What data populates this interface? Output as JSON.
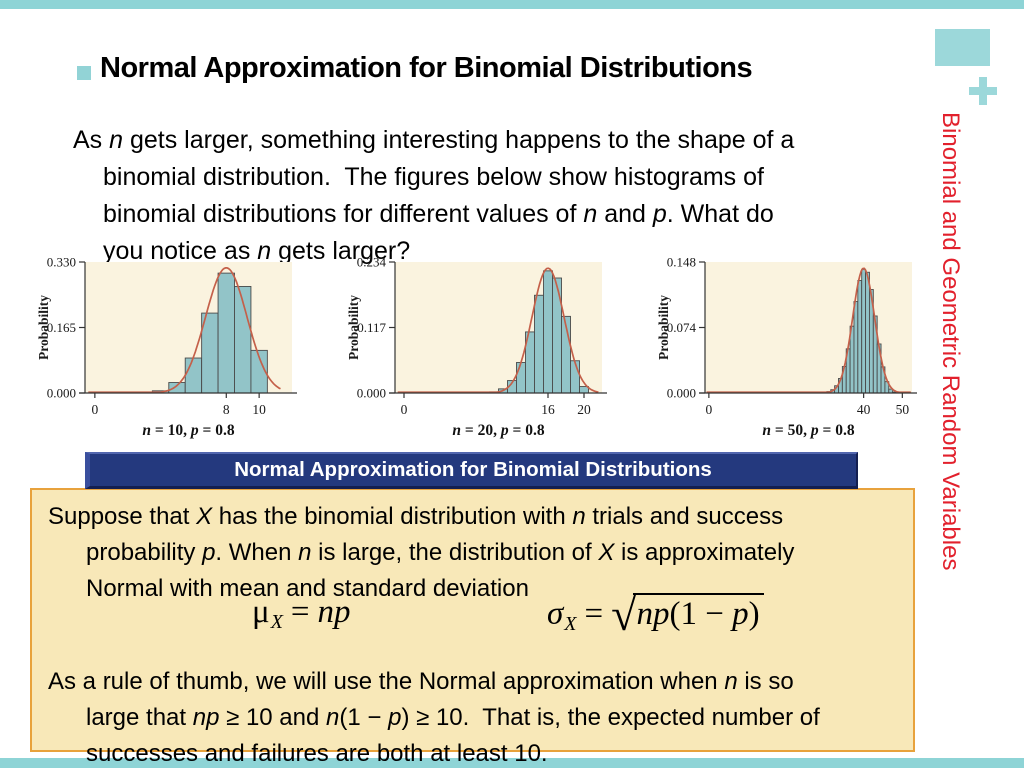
{
  "slide": {
    "title": "Normal Approximation for Binomial Distributions",
    "sidebar_title": "Binomial and Geometric Random Variables",
    "banner_label": "Normal Approximation for Binomial Distributions",
    "colors": {
      "accent_teal": "#8ED4D6",
      "bullet_teal": "#92D3D6",
      "corner_teal": "#9CD8DA",
      "banner_bg": "#24397E",
      "banner_text": "#FFFFFF",
      "box_bg": "#F8E8B8",
      "box_border": "#E8A23C",
      "sidebar_red": "#E2202C",
      "chart_bg": "#FAF3DF",
      "bar_fill": "#92C4C8",
      "bar_stroke": "#4A4A4A",
      "curve": "#C4604A"
    },
    "intro_rich": [
      {
        "t": "As "
      },
      {
        "t": "n",
        "i": true
      },
      {
        "t": " gets larger, something interesting happens to the shape of a"
      },
      {
        "br": true
      },
      {
        "t": "binomial distribution.  The figures below show histograms of"
      },
      {
        "br": true
      },
      {
        "t": "binomial distributions for different values of "
      },
      {
        "t": "n",
        "i": true
      },
      {
        "t": " and "
      },
      {
        "t": "p",
        "i": true
      },
      {
        "t": ". What do"
      },
      {
        "br": true
      },
      {
        "t": "you notice as "
      },
      {
        "t": "n",
        "i": true
      },
      {
        "t": " gets larger?"
      }
    ],
    "box_para1_rich": [
      {
        "t": "Suppose that "
      },
      {
        "t": "X",
        "i": true
      },
      {
        "t": " has the binomial distribution with "
      },
      {
        "t": "n",
        "i": true
      },
      {
        "t": " trials and success"
      },
      {
        "br": true
      },
      {
        "t": "probability "
      },
      {
        "t": "p",
        "i": true
      },
      {
        "t": ". When "
      },
      {
        "t": "n",
        "i": true
      },
      {
        "t": " is large, the distribution of "
      },
      {
        "t": "X",
        "i": true
      },
      {
        "t": " is approximately"
      },
      {
        "br": true
      },
      {
        "t": "Normal with mean and standard deviation"
      }
    ],
    "box_para2_rich": [
      {
        "t": "As a rule of thumb, we will use the Normal approximation when "
      },
      {
        "t": "n",
        "i": true
      },
      {
        "t": " is so"
      },
      {
        "br": true
      },
      {
        "t": "large that "
      },
      {
        "t": "np",
        "i": true
      },
      {
        "t": " ≥ 10 and "
      },
      {
        "t": "n",
        "i": true
      },
      {
        "t": "(1 − "
      },
      {
        "t": "p",
        "i": true
      },
      {
        "t": ") ≥ 10.  That is, the expected number of"
      },
      {
        "br": true
      },
      {
        "t": "successes and failures are both at least 10."
      }
    ],
    "formulas": {
      "mean": {
        "symbol": "μ",
        "subscript": "X",
        "equals": "=",
        "rhs": "np"
      },
      "sd": {
        "symbol": "σ",
        "subscript": "X",
        "equals": "=",
        "radical_glyph": "√",
        "radicand": [
          {
            "t": "np",
            "i": true
          },
          {
            "t": "(1 − "
          },
          {
            "t": "p",
            "i": true
          },
          {
            "t": ")"
          }
        ]
      }
    }
  },
  "chart_data": [
    {
      "type": "bar",
      "title": "n = 10, p = 0.8",
      "title_rich": [
        {
          "t": "n",
          "i": true
        },
        {
          "t": " = 10, "
        },
        {
          "t": "p",
          "i": true
        },
        {
          "t": " = 0.8"
        }
      ],
      "n": 10,
      "p": 0.8,
      "ylabel": "Probability",
      "yticks": [
        0,
        0.165,
        0.33
      ],
      "ytick_labels": [
        "0.000",
        "0.165",
        "0.330"
      ],
      "xticks": [
        0,
        8,
        10
      ],
      "xlim": [
        -0.6,
        12
      ],
      "ylim": [
        0,
        0.33
      ],
      "bars": {
        "start": 3,
        "values": [
          0.0009,
          0.0055,
          0.0264,
          0.0881,
          0.2013,
          0.302,
          0.2684,
          0.1074
        ]
      },
      "curve": {
        "type": "normal",
        "mean": 8,
        "sd": 1.2649,
        "from": -0.4,
        "to": 11.3
      }
    },
    {
      "type": "bar",
      "title": "n = 20, p = 0.8",
      "title_rich": [
        {
          "t": "n",
          "i": true
        },
        {
          "t": " = 20, "
        },
        {
          "t": "p",
          "i": true
        },
        {
          "t": " = 0.8"
        }
      ],
      "n": 20,
      "p": 0.8,
      "ylabel": "Probability",
      "yticks": [
        0,
        0.117,
        0.234
      ],
      "ytick_labels": [
        "0.000",
        "0.117",
        "0.234"
      ],
      "xticks": [
        0,
        16,
        20
      ],
      "xlim": [
        -1,
        22
      ],
      "ylim": [
        0,
        0.234
      ],
      "bars": {
        "start": 8,
        "values": [
          0.0001,
          0.0005,
          0.002,
          0.0074,
          0.0222,
          0.0545,
          0.1091,
          0.1746,
          0.2182,
          0.2054,
          0.1369,
          0.0576,
          0.0115
        ]
      },
      "curve": {
        "type": "normal",
        "mean": 16,
        "sd": 1.7889,
        "from": -0.7,
        "to": 21.6
      }
    },
    {
      "type": "bar",
      "title": "n = 50, p = 0.8",
      "title_rich": [
        {
          "t": "n",
          "i": true
        },
        {
          "t": " = 50, "
        },
        {
          "t": "p",
          "i": true
        },
        {
          "t": " = 0.8"
        }
      ],
      "n": 50,
      "p": 0.8,
      "ylabel": "Probability",
      "yticks": [
        0,
        0.074,
        0.148
      ],
      "ytick_labels": [
        "0.000",
        "0.074",
        "0.148"
      ],
      "xticks": [
        0,
        40,
        50
      ],
      "xlim": [
        -1,
        52.5
      ],
      "ylim": [
        0,
        0.148
      ],
      "bars": {
        "start": 28,
        "values": [
          7e-05,
          0.0002,
          0.0006,
          0.0016,
          0.0037,
          0.0082,
          0.0164,
          0.0299,
          0.0499,
          0.0755,
          0.1033,
          0.1271,
          0.1398,
          0.1364,
          0.1169,
          0.087,
          0.0554,
          0.0295,
          0.0128,
          0.0044,
          0.0011,
          0.0002,
          1e-05
        ]
      },
      "curve": {
        "type": "normal",
        "mean": 40,
        "sd": 2.8284,
        "from": -0.6,
        "to": 52.2
      }
    }
  ]
}
